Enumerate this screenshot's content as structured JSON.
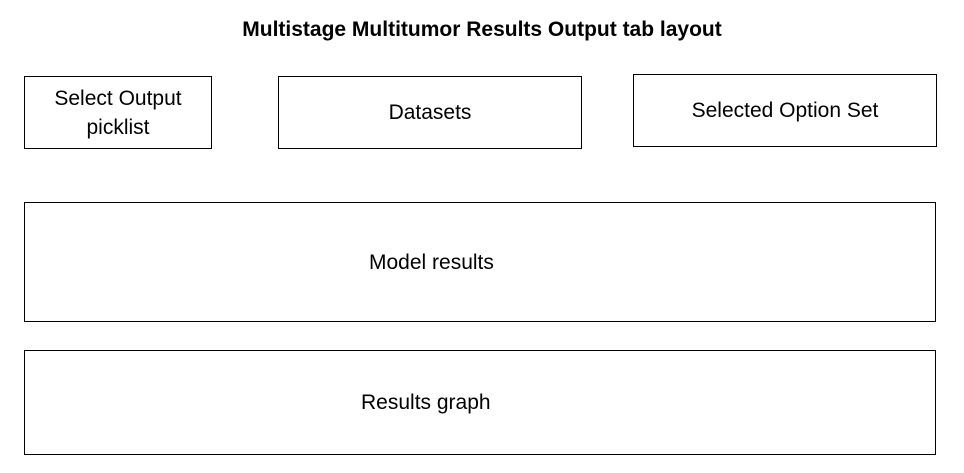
{
  "diagram": {
    "title": "Multistage Multitumor Results Output tab layout",
    "boxes": {
      "select_output_picklist": "Select Output picklist",
      "datasets": "Datasets",
      "selected_option_set": "Selected Option Set",
      "model_results": "Model results",
      "results_graph": "Results graph"
    }
  }
}
